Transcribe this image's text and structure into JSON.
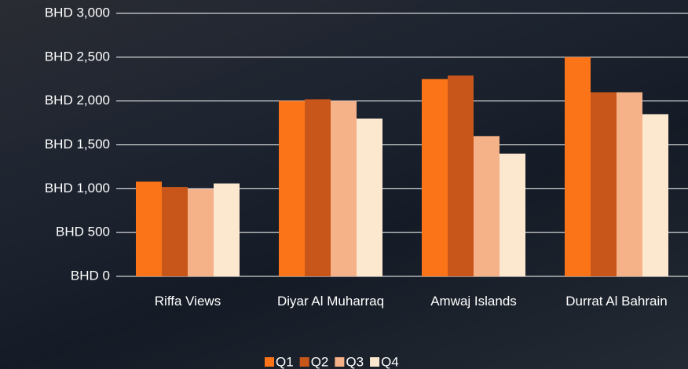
{
  "chart_data": {
    "type": "bar",
    "categories": [
      "Riffa Views",
      "Diyar Al Muharraq",
      "Amwaj Islands",
      "Durrat Al Bahrain"
    ],
    "series": [
      {
        "name": "Q1",
        "color": "#fb7417",
        "values": [
          1080,
          2000,
          2250,
          2500
        ]
      },
      {
        "name": "Q2",
        "color": "#c8561b",
        "values": [
          1020,
          2020,
          2290,
          2100
        ]
      },
      {
        "name": "Q3",
        "color": "#f5b187",
        "values": [
          995,
          2000,
          1600,
          2100
        ]
      },
      {
        "name": "Q4",
        "color": "#fce8cf",
        "values": [
          1060,
          1800,
          1400,
          1850
        ]
      }
    ],
    "ylim": [
      0,
      3000
    ],
    "yticks": [
      {
        "value": 0,
        "label": "BHD 0"
      },
      {
        "value": 500,
        "label": "BHD 500"
      },
      {
        "value": 1000,
        "label": "BHD 1,000"
      },
      {
        "value": 1500,
        "label": "BHD 1,500"
      },
      {
        "value": 2000,
        "label": "BHD 2,000"
      },
      {
        "value": 2500,
        "label": "BHD 2,500"
      },
      {
        "value": 3000,
        "label": "BHD 3,000"
      }
    ],
    "grid": true,
    "legend": "bottom"
  }
}
